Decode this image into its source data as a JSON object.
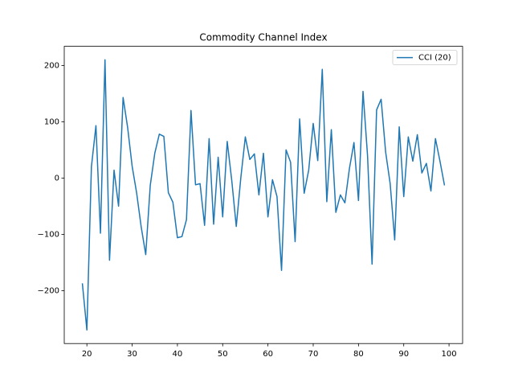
{
  "chart_data": {
    "type": "line",
    "title": "Commodity Channel Index",
    "x": [
      19,
      20,
      21,
      22,
      23,
      24,
      25,
      26,
      27,
      28,
      29,
      30,
      31,
      32,
      33,
      34,
      35,
      36,
      37,
      38,
      39,
      40,
      41,
      42,
      43,
      44,
      45,
      46,
      47,
      48,
      49,
      50,
      51,
      52,
      53,
      54,
      55,
      56,
      57,
      58,
      59,
      60,
      61,
      62,
      63,
      64,
      65,
      66,
      67,
      68,
      69,
      70,
      71,
      72,
      73,
      74,
      75,
      76,
      77,
      78,
      79,
      80,
      81,
      82,
      83,
      84,
      85,
      86,
      87,
      88,
      89,
      90,
      91,
      92,
      93,
      94,
      95,
      96,
      97,
      98,
      99
    ],
    "series": [
      {
        "name": "CCI (20)",
        "color": "#1f77b4",
        "values": [
          -187,
          -270,
          20,
          93,
          -98,
          210,
          -146,
          14,
          -50,
          143,
          90,
          21,
          -27,
          -87,
          -136,
          -13,
          44,
          78,
          74,
          -26,
          -43,
          -106,
          -104,
          -74,
          120,
          -12,
          -10,
          -84,
          70,
          -82,
          37,
          -69,
          65,
          -4,
          -86,
          0,
          73,
          33,
          43,
          -30,
          44,
          -69,
          -3,
          -33,
          -164,
          50,
          28,
          -113,
          105,
          -27,
          14,
          97,
          31,
          193,
          -42,
          86,
          -61,
          -30,
          -44,
          17,
          63,
          -40,
          154,
          40,
          -153,
          121,
          140,
          46,
          -10,
          -110,
          91,
          -33,
          73,
          30,
          77,
          9,
          26,
          -23,
          70,
          30,
          -13
        ]
      }
    ],
    "xlim": [
      15,
      103
    ],
    "ylim": [
      -294,
      234
    ],
    "xticks": [
      20,
      30,
      40,
      50,
      60,
      70,
      80,
      90,
      100
    ],
    "yticks": [
      {
        "value": -200,
        "label": "−200"
      },
      {
        "value": -100,
        "label": "−100"
      },
      0,
      100,
      200
    ],
    "legend": "upper right"
  }
}
